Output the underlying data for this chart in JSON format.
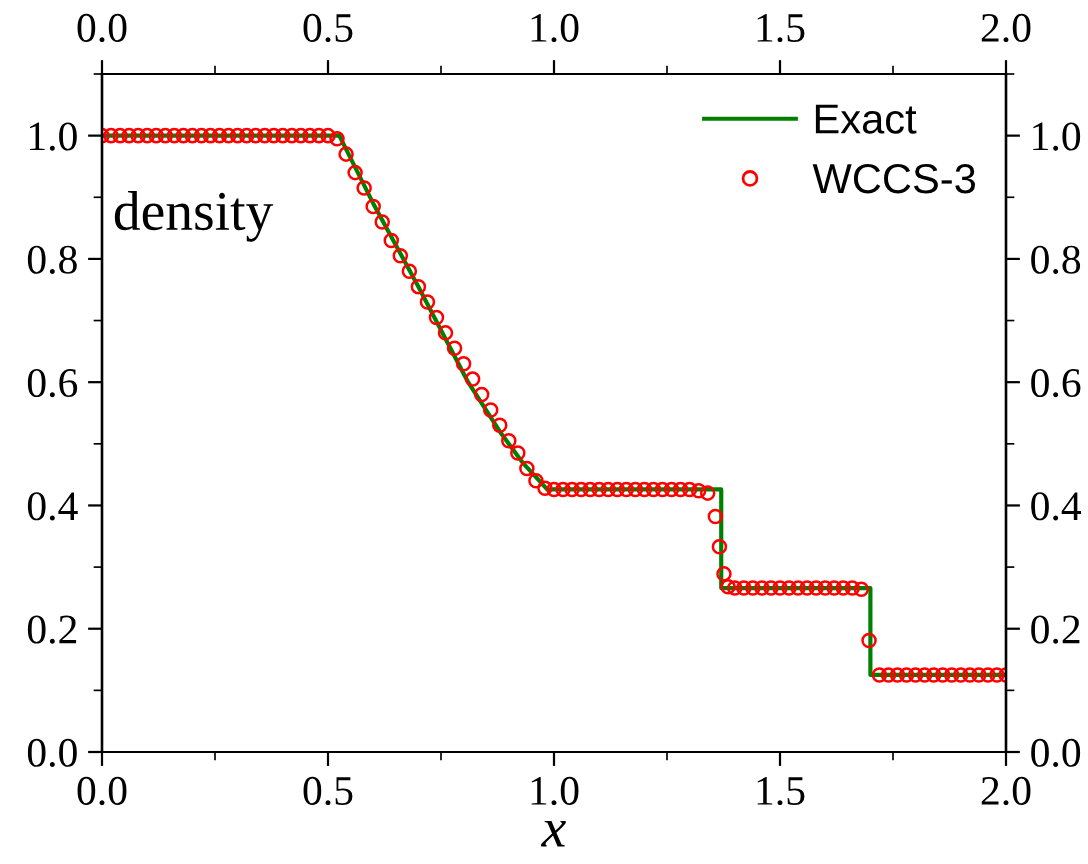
{
  "chart_data": {
    "type": "line",
    "xlabel": "x",
    "annotations": [
      "density"
    ],
    "xlim": [
      0,
      2
    ],
    "xticks": [
      {
        "value": 0,
        "label": "0.0"
      },
      {
        "value": 0.5,
        "label": "0.5"
      },
      {
        "value": 1,
        "label": "1.0"
      },
      {
        "value": 1.5,
        "label": "1.5"
      },
      {
        "value": 2,
        "label": "2.0"
      }
    ],
    "x2lim": [
      0,
      2
    ],
    "x2ticks": [
      {
        "value": 0,
        "label": "0.0"
      },
      {
        "value": 0.5,
        "label": "0.5"
      },
      {
        "value": 1,
        "label": "1.0"
      },
      {
        "value": 1.5,
        "label": "1.5"
      },
      {
        "value": 2,
        "label": "2.0"
      }
    ],
    "ylim": [
      0,
      1.1
    ],
    "yticks": [
      {
        "value": 0,
        "label": "0.0"
      },
      {
        "value": 0.2,
        "label": "0.2"
      },
      {
        "value": 0.4,
        "label": "0.4"
      },
      {
        "value": 0.6,
        "label": "0.6"
      },
      {
        "value": 0.8,
        "label": "0.8"
      },
      {
        "value": 1,
        "label": "1.0"
      }
    ],
    "y2lim": [
      0,
      1.1
    ],
    "y2ticks": [
      {
        "value": 0,
        "label": "0.0"
      },
      {
        "value": 0.2,
        "label": "0.2"
      },
      {
        "value": 0.4,
        "label": "0.4"
      },
      {
        "value": 0.6,
        "label": "0.6"
      },
      {
        "value": 0.8,
        "label": "0.8"
      },
      {
        "value": 1,
        "label": "1.0"
      }
    ],
    "legend": "top right",
    "grid": false,
    "series": [
      {
        "name": "Exact",
        "color": "#008000",
        "line_style": "solid",
        "marker": "none",
        "x": [
          0,
          0.525,
          0.6,
          0.7,
          0.81,
          0.88,
          0.93,
          0.985,
          1.37,
          1.37,
          1.7,
          1.7,
          2
        ],
        "values": [
          1.0,
          1.0,
          0.89,
          0.755,
          0.6,
          0.52,
          0.47,
          0.426,
          0.426,
          0.266,
          0.266,
          0.125,
          0.125
        ]
      },
      {
        "name": "WCCS-3",
        "type": "scatter",
        "color": "#ff0000",
        "marker": "circle",
        "x": [
          0,
          0.02,
          0.04,
          0.06,
          0.08,
          0.1,
          0.12,
          0.14,
          0.16,
          0.18,
          0.2,
          0.22,
          0.24,
          0.26,
          0.28,
          0.3,
          0.32,
          0.34,
          0.36,
          0.38,
          0.4,
          0.42,
          0.44,
          0.46,
          0.48,
          0.5,
          0.52,
          0.54,
          0.56,
          0.58,
          0.6,
          0.62,
          0.64,
          0.66,
          0.68,
          0.7,
          0.72,
          0.74,
          0.76,
          0.78,
          0.8,
          0.82,
          0.84,
          0.86,
          0.88,
          0.9,
          0.92,
          0.94,
          0.96,
          0.98,
          1.0,
          1.02,
          1.04,
          1.06,
          1.08,
          1.1,
          1.12,
          1.14,
          1.16,
          1.18,
          1.2,
          1.22,
          1.24,
          1.26,
          1.28,
          1.3,
          1.32,
          1.34,
          1.357,
          1.366,
          1.376,
          1.385,
          1.4,
          1.42,
          1.44,
          1.46,
          1.48,
          1.5,
          1.52,
          1.54,
          1.56,
          1.58,
          1.6,
          1.62,
          1.64,
          1.66,
          1.68,
          1.697,
          1.72,
          1.74,
          1.76,
          1.78,
          1.8,
          1.82,
          1.84,
          1.86,
          1.88,
          1.9,
          1.92,
          1.94,
          1.96,
          1.98,
          2.0
        ],
        "values": [
          1.0,
          1.0,
          1.0,
          1.0,
          1.0,
          1.0,
          1.0,
          1.0,
          1.0,
          1.0,
          1.0,
          1.0,
          1.0,
          1.0,
          1.0,
          1.0,
          1.0,
          1.0,
          1.0,
          1.0,
          1.0,
          1.0,
          1.0,
          1.0,
          1.0,
          1.0,
          0.995,
          0.97,
          0.94,
          0.915,
          0.885,
          0.86,
          0.83,
          0.805,
          0.78,
          0.755,
          0.73,
          0.705,
          0.68,
          0.655,
          0.63,
          0.605,
          0.58,
          0.555,
          0.53,
          0.505,
          0.485,
          0.46,
          0.44,
          0.428,
          0.426,
          0.426,
          0.426,
          0.426,
          0.426,
          0.426,
          0.426,
          0.426,
          0.426,
          0.426,
          0.426,
          0.426,
          0.426,
          0.426,
          0.426,
          0.426,
          0.424,
          0.42,
          0.382,
          0.333,
          0.289,
          0.268,
          0.266,
          0.266,
          0.266,
          0.266,
          0.266,
          0.266,
          0.266,
          0.266,
          0.266,
          0.266,
          0.266,
          0.266,
          0.266,
          0.266,
          0.264,
          0.181,
          0.125,
          0.125,
          0.125,
          0.125,
          0.125,
          0.125,
          0.125,
          0.125,
          0.125,
          0.125,
          0.125,
          0.125,
          0.125,
          0.125,
          0.125
        ]
      }
    ]
  }
}
